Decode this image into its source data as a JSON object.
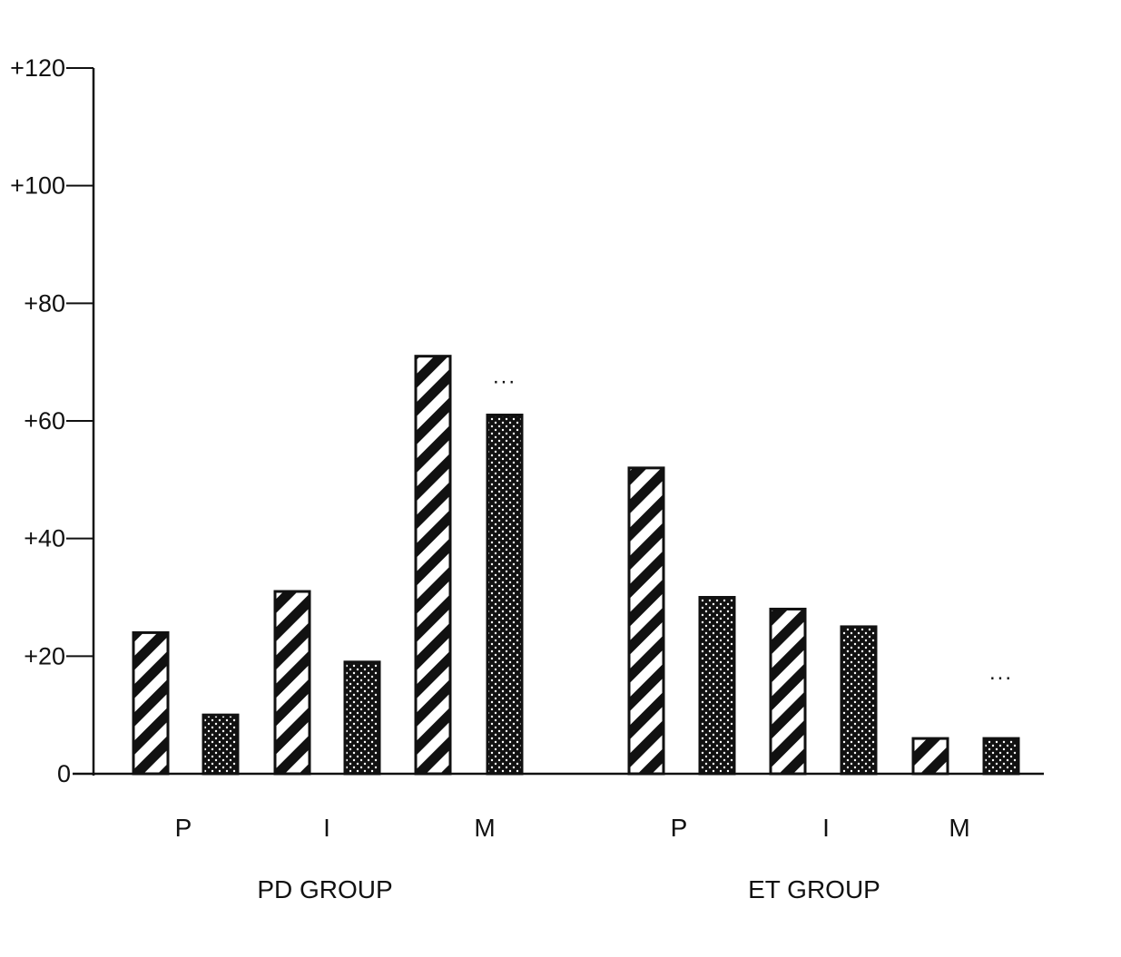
{
  "chart_data": {
    "type": "bar",
    "title": "",
    "xlabel": "",
    "ylabel": "",
    "ylim": [
      0,
      120
    ],
    "y_ticks": [
      "0",
      "+20",
      "+40",
      "+60",
      "+80",
      "+100",
      "+120"
    ],
    "y_tick_values": [
      0,
      20,
      40,
      60,
      80,
      100,
      120
    ],
    "groups": [
      {
        "label": "PD GROUP",
        "categories": [
          {
            "label": "P",
            "values": [
              24,
              10
            ],
            "significance": ""
          },
          {
            "label": "I",
            "values": [
              31,
              19
            ],
            "significance": ""
          },
          {
            "label": "M",
            "values": [
              71,
              61
            ],
            "significance": "..."
          }
        ]
      },
      {
        "label": "ET GROUP",
        "categories": [
          {
            "label": "P",
            "values": [
              52,
              30
            ],
            "significance": ""
          },
          {
            "label": "I",
            "values": [
              28,
              25
            ],
            "significance": ""
          },
          {
            "label": "M",
            "values": [
              6,
              6
            ],
            "significance": "..."
          }
        ]
      }
    ],
    "series": [
      {
        "pattern": "diagonal-hatch",
        "color": "#111111"
      },
      {
        "pattern": "dotted",
        "color": "#111111"
      }
    ],
    "grid": false,
    "legend": "none"
  }
}
